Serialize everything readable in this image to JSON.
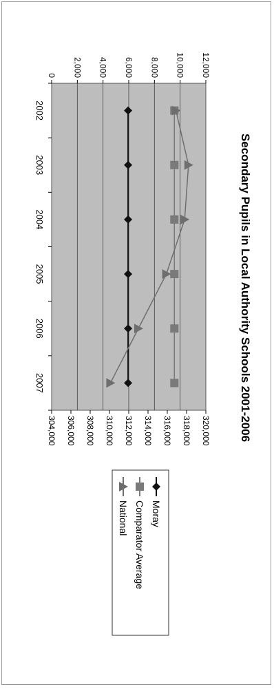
{
  "chart_data": {
    "type": "line",
    "title": "Secondary Pupils in Local Authority Schools 2001-2006",
    "categories": [
      "2002",
      "2003",
      "2004",
      "2005",
      "2006",
      "2007"
    ],
    "primary_axis": {
      "min": 0,
      "max": 12000,
      "ticks": [
        "0",
        "2,000",
        "4,000",
        "6,000",
        "8,000",
        "10,000",
        "12,000"
      ]
    },
    "secondary_axis": {
      "min": 304000,
      "max": 320000,
      "ticks": [
        "304,000",
        "306,000",
        "308,000",
        "310,000",
        "312,000",
        "314,000",
        "316,000",
        "318,000",
        "320,000"
      ]
    },
    "series": [
      {
        "name": "Moray",
        "axis": "primary",
        "marker": "diamond",
        "color": "#111111",
        "values": [
          5950,
          5950,
          5950,
          5950,
          5950,
          5950
        ]
      },
      {
        "name": "Comparator Average",
        "axis": "primary",
        "marker": "square",
        "color": "#7a7a7a",
        "values": [
          9550,
          9550,
          9550,
          9550,
          9550,
          9550
        ]
      },
      {
        "name": "National",
        "axis": "secondary",
        "marker": "triangle",
        "color": "#6e6e6e",
        "values": [
          316900,
          318200,
          317800,
          315900,
          313000,
          310100
        ]
      }
    ],
    "grid": true,
    "legend": "right",
    "plot_background": "#bdbdbd"
  }
}
